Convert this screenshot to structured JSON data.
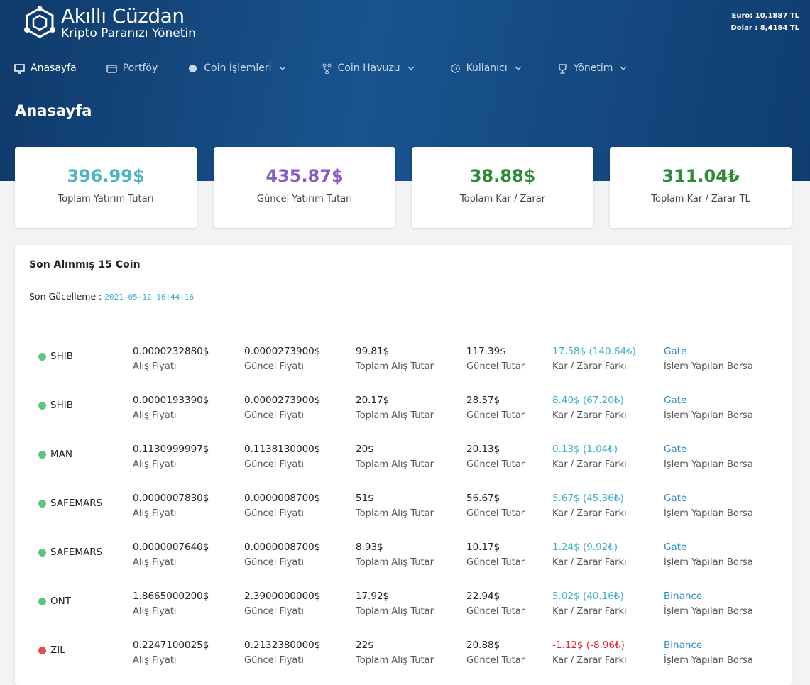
{
  "header": {
    "brand": "Akıllı Cüzdan",
    "tagline": "Kripto Paranızı Yönetin",
    "rates": [
      "Euro: 10,1887 TL",
      "Dolar : 8,4184 TL"
    ]
  },
  "nav": [
    {
      "label": "Anasayfa",
      "dropdown": false
    },
    {
      "label": "Portföy",
      "dropdown": false
    },
    {
      "label": "Coin İşlemleri",
      "dropdown": true
    },
    {
      "label": "Coin Havuzu",
      "dropdown": true
    },
    {
      "label": "Kullanıcı",
      "dropdown": true
    },
    {
      "label": "Yönetim",
      "dropdown": true
    }
  ],
  "page_title": "Anasayfa",
  "stats": [
    {
      "value": "396.99$",
      "label": "Toplam Yatırım Tutarı",
      "color": "#4bb5c6"
    },
    {
      "value": "435.87$",
      "label": "Güncel Yatırım Tutarı",
      "color": "#8a5bc4"
    },
    {
      "value": "38.88$",
      "label": "Toplam Kar / Zarar",
      "color": "#2f8a36"
    },
    {
      "value": "311.04₺",
      "label": "Toplam Kar / Zarar TL",
      "color": "#2f8a36"
    }
  ],
  "panel": {
    "title": "Son Alınmış 15 Coin",
    "updated_label": "Son Gücelleme :",
    "updated_at": "2021-05-12 16:44:16",
    "column_labels": [
      "Alış Fiyatı",
      "Güncel Fiyatı",
      "Toplam Alış Tutar",
      "Güncel Tutar",
      "Kar / Zarar Farkı",
      "İşlem Yapılan Borsa"
    ],
    "rows": [
      {
        "coin": "SHIB",
        "dot_color": "#5cc67a",
        "profit_color": "#3fb0c8",
        "buy_price": "0.0000232880$",
        "current_price": "0.0000273900$",
        "total_buy": "99.81$",
        "current_total": "117.39$",
        "profit": "17.58$ (140.64₺)",
        "exchange": "Gate"
      },
      {
        "coin": "SHIB",
        "dot_color": "#5cc67a",
        "profit_color": "#3fb0c8",
        "buy_price": "0.0000193390$",
        "current_price": "0.0000273900$",
        "total_buy": "20.17$",
        "current_total": "28.57$",
        "profit": "8.40$ (67.20₺)",
        "exchange": "Gate"
      },
      {
        "coin": "MAN",
        "dot_color": "#5cc67a",
        "profit_color": "#3fb0c8",
        "buy_price": "0.1130999997$",
        "current_price": "0.1138130000$",
        "total_buy": "20$",
        "current_total": "20.13$",
        "profit": "0.13$ (1.04₺)",
        "exchange": "Gate"
      },
      {
        "coin": "SAFEMARS",
        "dot_color": "#5cc67a",
        "profit_color": "#3fb0c8",
        "buy_price": "0.0000007830$",
        "current_price": "0.0000008700$",
        "total_buy": "51$",
        "current_total": "56.67$",
        "profit": "5.67$ (45.36₺)",
        "exchange": "Gate"
      },
      {
        "coin": "SAFEMARS",
        "dot_color": "#5cc67a",
        "profit_color": "#3fb0c8",
        "buy_price": "0.0000007640$",
        "current_price": "0.0000008700$",
        "total_buy": "8.93$",
        "current_total": "10.17$",
        "profit": "1.24$ (9.92₺)",
        "exchange": "Gate"
      },
      {
        "coin": "ONT",
        "dot_color": "#5cc67a",
        "profit_color": "#3fb0c8",
        "buy_price": "1.8665000200$",
        "current_price": "2.3900000000$",
        "total_buy": "17.92$",
        "current_total": "22.94$",
        "profit": "5.02$ (40.16₺)",
        "exchange": "Binance"
      },
      {
        "coin": "ZIL",
        "dot_color": "#e84a4a",
        "profit_color": "#e02a2a",
        "buy_price": "0.2247100025$",
        "current_price": "0.2132380000$",
        "total_buy": "22$",
        "current_total": "20.88$",
        "profit": "-1.12$ (-8.96₺)",
        "exchange": "Binance"
      }
    ]
  }
}
